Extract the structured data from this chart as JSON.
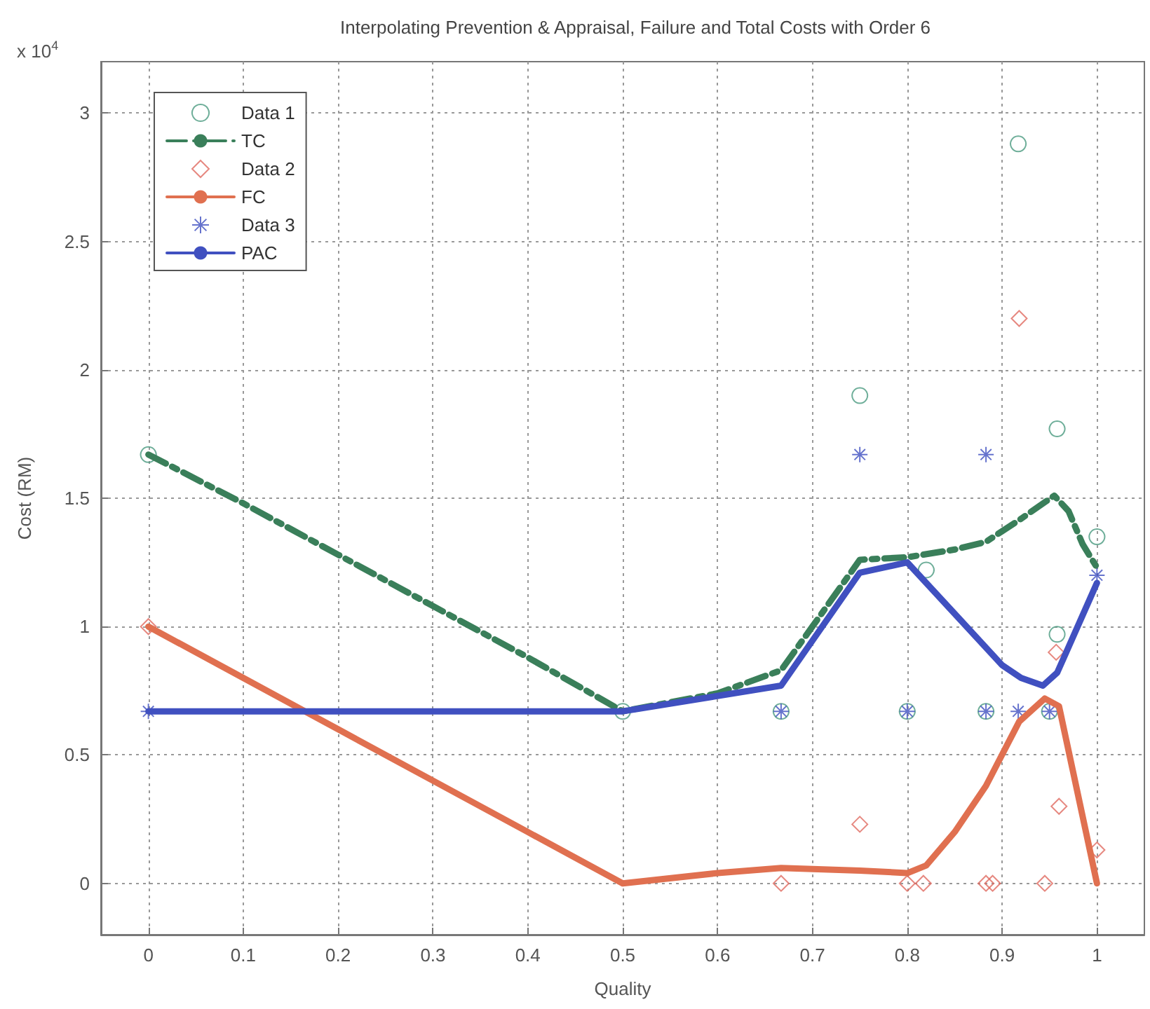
{
  "chart_data": {
    "type": "line",
    "title": "Interpolating Prevention & Appraisal, Failure and Total Costs with Order 6",
    "xlabel": "Quality",
    "ylabel": "Cost (RM)",
    "annotations": [
      "x 10$^{4}$"
    ],
    "xlim": [
      -0.05,
      1.05
    ],
    "xticks": [
      0,
      0.1,
      0.2,
      0.3,
      0.4,
      0.5,
      0.6,
      0.7,
      0.8,
      0.9,
      1
    ],
    "ylim": [
      -0.2,
      3.2
    ],
    "yticks": [
      0,
      0.5,
      1,
      1.5,
      2,
      2.5,
      3
    ],
    "grid": true,
    "legend": "top left",
    "series": [
      {
        "name": "Data 1",
        "type": "scatter",
        "marker": "circle",
        "color": "#4a9a80",
        "x": [
          0,
          0.5,
          0.667,
          0.75,
          0.82,
          0.8,
          0.883,
          0.917,
          0.95,
          0.958,
          0.958,
          1.0
        ],
        "values": [
          1.67,
          0.67,
          0.67,
          1.9,
          1.22,
          0.67,
          0.67,
          2.88,
          0.67,
          1.77,
          0.97,
          1.35
        ]
      },
      {
        "name": "TC",
        "type": "line",
        "marker": "none",
        "line_style": "dashed",
        "color": "#3a7f5a",
        "x": [
          0,
          0.1,
          0.2,
          0.3,
          0.4,
          0.5,
          0.6,
          0.667,
          0.7,
          0.75,
          0.8,
          0.85,
          0.883,
          0.92,
          0.955,
          0.97,
          0.985,
          1.0
        ],
        "values": [
          1.67,
          1.48,
          1.28,
          1.08,
          0.88,
          0.67,
          0.74,
          0.83,
          1.0,
          1.26,
          1.27,
          1.3,
          1.33,
          1.42,
          1.51,
          1.45,
          1.32,
          1.23
        ]
      },
      {
        "name": "Data 2",
        "type": "scatter",
        "marker": "diamond",
        "color": "#e06a60",
        "x": [
          0,
          0.667,
          0.75,
          0.8,
          0.817,
          0.883,
          0.89,
          0.918,
          0.945,
          0.957,
          0.96,
          1.0
        ],
        "values": [
          1.0,
          0,
          0.23,
          0,
          0,
          0,
          0,
          2.2,
          0,
          0.9,
          0.3,
          0.13
        ]
      },
      {
        "name": "FC",
        "type": "line",
        "marker": "none",
        "line_style": "solid",
        "color": "#e07050",
        "x": [
          0,
          0.1,
          0.2,
          0.3,
          0.4,
          0.5,
          0.6,
          0.667,
          0.75,
          0.8,
          0.82,
          0.85,
          0.883,
          0.918,
          0.945,
          0.96,
          1.0
        ],
        "values": [
          1.0,
          0.8,
          0.6,
          0.4,
          0.2,
          0,
          0.04,
          0.06,
          0.05,
          0.04,
          0.07,
          0.2,
          0.38,
          0.63,
          0.72,
          0.69,
          0.0
        ]
      },
      {
        "name": "Data 3",
        "type": "scatter",
        "marker": "cross",
        "color": "#4050c0",
        "x": [
          0,
          0.5,
          0.667,
          0.75,
          0.8,
          0.883,
          0.883,
          0.917,
          0.95,
          1.0
        ],
        "values": [
          0.67,
          null,
          0.67,
          1.67,
          0.67,
          1.67,
          0.67,
          0.67,
          0.67,
          1.2
        ]
      },
      {
        "name": "PAC",
        "type": "line",
        "marker": "none",
        "line_style": "solid",
        "color": "#4050c0",
        "x": [
          0,
          0.5,
          0.667,
          0.75,
          0.8,
          0.85,
          0.9,
          0.92,
          0.943,
          0.958,
          1.0
        ],
        "values": [
          0.67,
          0.67,
          0.77,
          1.21,
          1.25,
          1.05,
          0.85,
          0.8,
          0.77,
          0.82,
          1.17
        ]
      }
    ]
  }
}
